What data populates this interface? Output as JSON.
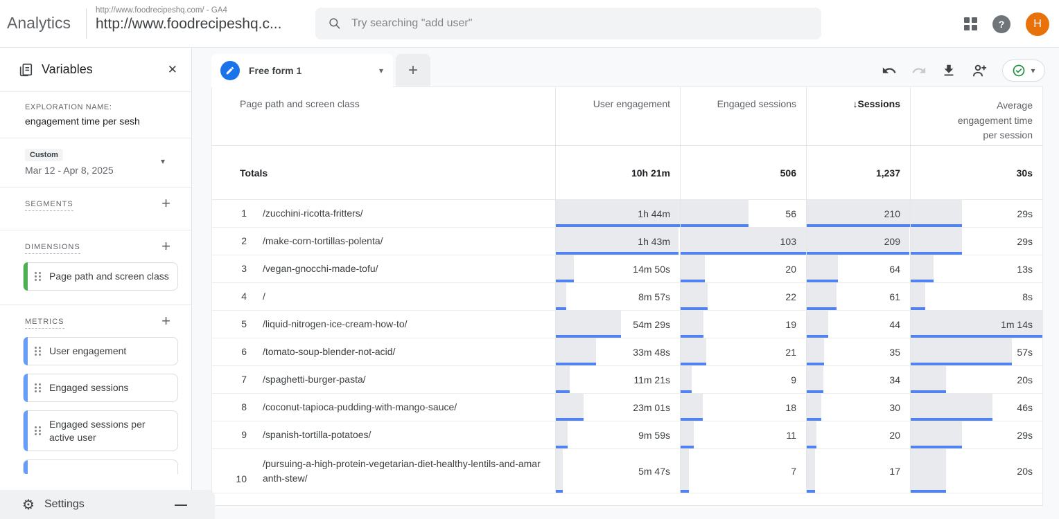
{
  "header": {
    "app_name": "Analytics",
    "property_line1": "http://www.foodrecipeshq.com/ - GA4",
    "property_line2": "http://www.foodrecipeshq.c...",
    "search_placeholder": "Try searching \"add user\"",
    "avatar_initial": "H"
  },
  "sidebar": {
    "title": "Variables",
    "exploration_name_label": "EXPLORATION NAME:",
    "exploration_name": "engagement time per sesh",
    "date_badge": "Custom",
    "date_range": "Mar 12 - Apr 8, 2025",
    "segments_label": "SEGMENTS",
    "dimensions_label": "DIMENSIONS",
    "metrics_label": "METRICS",
    "dimension_chips": [
      "Page path and screen class"
    ],
    "metric_chips": [
      "User engagement",
      "Engaged sessions",
      "Engaged sessions per active user"
    ],
    "settings_label": "Settings"
  },
  "tabs": {
    "active": "Free form 1"
  },
  "table": {
    "columns": [
      "Page path and screen class",
      "User engagement",
      "Engaged sessions",
      "Sessions",
      "Average engagement time per session"
    ],
    "sorted_column": "Sessions",
    "sort_direction": "descending",
    "totals": {
      "label": "Totals",
      "user_engagement": "10h 21m",
      "engaged_sessions": "506",
      "sessions": "1,237",
      "avg_time": "30s"
    },
    "rows": [
      {
        "rank": "1",
        "path": "/zucchini-ricotta-fritters/",
        "user_engagement": "1h 44m",
        "ue_pct": 100,
        "engaged_sessions": "56",
        "es_pct": 54.4,
        "sessions": "210",
        "sess_pct": 100,
        "avg_time": "29s",
        "avg_pct": 39.2
      },
      {
        "rank": "2",
        "path": "/make-corn-tortillas-polenta/",
        "user_engagement": "1h 43m",
        "ue_pct": 99,
        "engaged_sessions": "103",
        "es_pct": 100,
        "sessions": "209",
        "sess_pct": 99.5,
        "avg_time": "29s",
        "avg_pct": 39.2
      },
      {
        "rank": "3",
        "path": "/vegan-gnocchi-made-tofu/",
        "user_engagement": "14m 50s",
        "ue_pct": 14.3,
        "engaged_sessions": "20",
        "es_pct": 19.4,
        "sessions": "64",
        "sess_pct": 30.5,
        "avg_time": "13s",
        "avg_pct": 17.6
      },
      {
        "rank": "4",
        "path": "/",
        "user_engagement": "8m 57s",
        "ue_pct": 8.6,
        "engaged_sessions": "22",
        "es_pct": 21.4,
        "sessions": "61",
        "sess_pct": 29,
        "avg_time": "8s",
        "avg_pct": 10.8
      },
      {
        "rank": "5",
        "path": "/liquid-nitrogen-ice-cream-how-to/",
        "user_engagement": "54m 29s",
        "ue_pct": 52.4,
        "engaged_sessions": "19",
        "es_pct": 18.4,
        "sessions": "44",
        "sess_pct": 21,
        "avg_time": "1m 14s",
        "avg_pct": 100
      },
      {
        "rank": "6",
        "path": "/tomato-soup-blender-not-acid/",
        "user_engagement": "33m 48s",
        "ue_pct": 32.5,
        "engaged_sessions": "21",
        "es_pct": 20.4,
        "sessions": "35",
        "sess_pct": 16.7,
        "avg_time": "57s",
        "avg_pct": 77
      },
      {
        "rank": "7",
        "path": "/spaghetti-burger-pasta/",
        "user_engagement": "11m 21s",
        "ue_pct": 10.9,
        "engaged_sessions": "9",
        "es_pct": 8.7,
        "sessions": "34",
        "sess_pct": 16.2,
        "avg_time": "20s",
        "avg_pct": 27
      },
      {
        "rank": "8",
        "path": "/coconut-tapioca-pudding-with-mango-sauce/",
        "user_engagement": "23m 01s",
        "ue_pct": 22.1,
        "engaged_sessions": "18",
        "es_pct": 17.5,
        "sessions": "30",
        "sess_pct": 14.3,
        "avg_time": "46s",
        "avg_pct": 62.2
      },
      {
        "rank": "9",
        "path": "/spanish-tortilla-potatoes/",
        "user_engagement": "9m 59s",
        "ue_pct": 9.6,
        "engaged_sessions": "11",
        "es_pct": 10.7,
        "sessions": "20",
        "sess_pct": 9.5,
        "avg_time": "29s",
        "avg_pct": 39.2
      },
      {
        "rank": "10",
        "path": "/pursuing-a-high-protein-vegetarian-diet-healthy-lentils-and-amaranth-stew/",
        "user_engagement": "5m 47s",
        "ue_pct": 5.6,
        "engaged_sessions": "7",
        "es_pct": 6.8,
        "sessions": "17",
        "sess_pct": 8.1,
        "avg_time": "20s",
        "avg_pct": 27
      }
    ]
  },
  "icons": {
    "sort_desc": "↓",
    "caret": "▾",
    "close": "✕",
    "plus": "+",
    "minus": "—",
    "gear": "⚙",
    "help": "?"
  },
  "colors": {
    "accent_blue": "#1a73e8",
    "bar_fill": "#e8eaed",
    "bar_line": "#5082f0",
    "dimension_accent": "#4caf50",
    "metric_accent": "#669df6",
    "avatar_bg": "#e8710a",
    "check_green": "#1e8e3e"
  }
}
